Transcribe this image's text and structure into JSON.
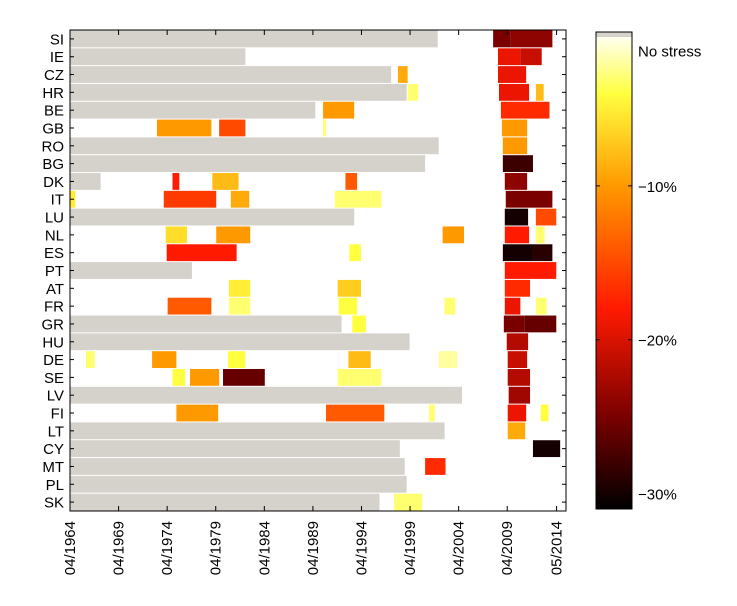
{
  "chart_data": {
    "type": "heatmap",
    "title": "",
    "xlabel": "",
    "ylabel": "",
    "x_range": [
      1964.25,
      2015.3
    ],
    "x_tick_labels": [
      {
        "label": "04/1964",
        "value": 1964.25
      },
      {
        "label": "04/1969",
        "value": 1969.25
      },
      {
        "label": "04/1974",
        "value": 1974.25
      },
      {
        "label": "04/1979",
        "value": 1979.25
      },
      {
        "label": "04/1984",
        "value": 1984.25
      },
      {
        "label": "04/1989",
        "value": 1989.25
      },
      {
        "label": "04/1994",
        "value": 1994.25
      },
      {
        "label": "04/1999",
        "value": 1999.25
      },
      {
        "label": "04/2004",
        "value": 2004.25
      },
      {
        "label": "04/2009",
        "value": 2009.25
      },
      {
        "label": "05/2014",
        "value": 2014.33
      }
    ],
    "countries": [
      "SI",
      "IE",
      "CZ",
      "HR",
      "BE",
      "GB",
      "RO",
      "BG",
      "DK",
      "IT",
      "LU",
      "NL",
      "ES",
      "PT",
      "AT",
      "FR",
      "GR",
      "HU",
      "DE",
      "SE",
      "LV",
      "FI",
      "LT",
      "CY",
      "MT",
      "PL",
      "SK"
    ],
    "no_data_color": "#d5d1cb",
    "no_data_periods": [
      {
        "country": "SI",
        "start": 1964.25,
        "end": 2002.1
      },
      {
        "country": "IE",
        "start": 1964.25,
        "end": 1982.3
      },
      {
        "country": "CZ",
        "start": 1964.25,
        "end": 1997.3
      },
      {
        "country": "HR",
        "start": 1964.25,
        "end": 1998.9
      },
      {
        "country": "BE",
        "start": 1964.25,
        "end": 1989.5
      },
      {
        "country": "RO",
        "start": 1964.25,
        "end": 2002.2
      },
      {
        "country": "BG",
        "start": 1964.25,
        "end": 2000.8
      },
      {
        "country": "DK",
        "start": 1964.25,
        "end": 1967.4
      },
      {
        "country": "LU",
        "start": 1964.25,
        "end": 1993.5
      },
      {
        "country": "PT",
        "start": 1964.25,
        "end": 1976.8
      },
      {
        "country": "GR",
        "start": 1964.25,
        "end": 1992.2
      },
      {
        "country": "HU",
        "start": 1964.25,
        "end": 1999.2
      },
      {
        "country": "LV",
        "start": 1964.25,
        "end": 2004.6
      },
      {
        "country": "LT",
        "start": 1964.25,
        "end": 2002.8
      },
      {
        "country": "CY",
        "start": 1964.25,
        "end": 1998.2
      },
      {
        "country": "MT",
        "start": 1964.25,
        "end": 1998.7
      },
      {
        "country": "PL",
        "start": 1964.25,
        "end": 1998.9
      },
      {
        "country": "SK",
        "start": 1964.25,
        "end": 1996.1
      }
    ],
    "stress_periods": [
      {
        "country": "SI",
        "start": 2007.8,
        "end": 2009.6,
        "value": -25
      },
      {
        "country": "SI",
        "start": 2009.6,
        "end": 2013.9,
        "value": -24
      },
      {
        "country": "IE",
        "start": 2008.3,
        "end": 2010.6,
        "value": -19
      },
      {
        "country": "IE",
        "start": 2010.6,
        "end": 2012.8,
        "value": -21
      },
      {
        "country": "CZ",
        "start": 1998.0,
        "end": 1999.0,
        "value": -9
      },
      {
        "country": "CZ",
        "start": 2008.3,
        "end": 2011.2,
        "value": -19
      },
      {
        "country": "HR",
        "start": 1999.0,
        "end": 2000.1,
        "value": -3
      },
      {
        "country": "HR",
        "start": 2008.4,
        "end": 2011.5,
        "value": -19
      },
      {
        "country": "HR",
        "start": 2012.2,
        "end": 2013.0,
        "value": -8
      },
      {
        "country": "BE",
        "start": 1990.3,
        "end": 1993.5,
        "value": -10
      },
      {
        "country": "BE",
        "start": 2008.6,
        "end": 2013.6,
        "value": -17
      },
      {
        "country": "GB",
        "start": 1973.2,
        "end": 1978.8,
        "value": -10
      },
      {
        "country": "GB",
        "start": 1979.6,
        "end": 1982.3,
        "value": -15
      },
      {
        "country": "GB",
        "start": 1990.3,
        "end": 1990.6,
        "value": -3
      },
      {
        "country": "GB",
        "start": 2008.7,
        "end": 2011.3,
        "value": -10
      },
      {
        "country": "RO",
        "start": 2008.8,
        "end": 2011.3,
        "value": -10
      },
      {
        "country": "BG",
        "start": 2008.8,
        "end": 2011.9,
        "value": -28
      },
      {
        "country": "DK",
        "start": 1974.8,
        "end": 1975.5,
        "value": -18
      },
      {
        "country": "DK",
        "start": 1978.9,
        "end": 1981.6,
        "value": -8
      },
      {
        "country": "DK",
        "start": 1992.6,
        "end": 1993.8,
        "value": -14
      },
      {
        "country": "DK",
        "start": 2009.0,
        "end": 2011.3,
        "value": -24
      },
      {
        "country": "IT",
        "start": 1964.25,
        "end": 1964.8,
        "value": -5
      },
      {
        "country": "IT",
        "start": 1973.9,
        "end": 1979.3,
        "value": -16
      },
      {
        "country": "IT",
        "start": 1980.8,
        "end": 1982.7,
        "value": -9
      },
      {
        "country": "IT",
        "start": 1991.5,
        "end": 1996.3,
        "value": -3
      },
      {
        "country": "IT",
        "start": 2009.1,
        "end": 2013.9,
        "value": -25
      },
      {
        "country": "LU",
        "start": 2009.0,
        "end": 2011.4,
        "value": -30
      },
      {
        "country": "LU",
        "start": 2012.2,
        "end": 2014.3,
        "value": -15
      },
      {
        "country": "NL",
        "start": 1974.1,
        "end": 1976.3,
        "value": -6
      },
      {
        "country": "NL",
        "start": 1979.3,
        "end": 1982.8,
        "value": -10
      },
      {
        "country": "NL",
        "start": 2002.6,
        "end": 2004.8,
        "value": -10
      },
      {
        "country": "NL",
        "start": 2009.0,
        "end": 2011.5,
        "value": -18
      },
      {
        "country": "NL",
        "start": 2012.2,
        "end": 2013.1,
        "value": -3
      },
      {
        "country": "ES",
        "start": 1974.2,
        "end": 1981.4,
        "value": -18
      },
      {
        "country": "ES",
        "start": 1993.0,
        "end": 1994.2,
        "value": -4
      },
      {
        "country": "ES",
        "start": 2008.8,
        "end": 2011.9,
        "value": -30
      },
      {
        "country": "ES",
        "start": 2011.9,
        "end": 2013.9,
        "value": -29
      },
      {
        "country": "PT",
        "start": 2009.0,
        "end": 2014.3,
        "value": -18
      },
      {
        "country": "AT",
        "start": 1980.6,
        "end": 1982.8,
        "value": -5
      },
      {
        "country": "AT",
        "start": 1991.8,
        "end": 1994.2,
        "value": -7
      },
      {
        "country": "AT",
        "start": 2009.0,
        "end": 2011.6,
        "value": -17
      },
      {
        "country": "FR",
        "start": 1974.3,
        "end": 1978.8,
        "value": -14
      },
      {
        "country": "FR",
        "start": 1980.6,
        "end": 1982.8,
        "value": -3
      },
      {
        "country": "FR",
        "start": 1991.9,
        "end": 1993.8,
        "value": -4
      },
      {
        "country": "FR",
        "start": 2002.8,
        "end": 2003.9,
        "value": -3
      },
      {
        "country": "FR",
        "start": 2009.0,
        "end": 2010.6,
        "value": -19
      },
      {
        "country": "FR",
        "start": 2012.2,
        "end": 2013.3,
        "value": -3
      },
      {
        "country": "GR",
        "start": 1993.3,
        "end": 1994.7,
        "value": -4
      },
      {
        "country": "GR",
        "start": 2008.9,
        "end": 2011.0,
        "value": -25
      },
      {
        "country": "GR",
        "start": 2011.0,
        "end": 2014.3,
        "value": -26
      },
      {
        "country": "HU",
        "start": 2009.2,
        "end": 2011.4,
        "value": -22
      },
      {
        "country": "DE",
        "start": 1965.9,
        "end": 1966.8,
        "value": -3
      },
      {
        "country": "DE",
        "start": 1972.7,
        "end": 1975.2,
        "value": -10
      },
      {
        "country": "DE",
        "start": 1980.5,
        "end": 1982.3,
        "value": -4
      },
      {
        "country": "DE",
        "start": 1992.9,
        "end": 1995.2,
        "value": -8
      },
      {
        "country": "DE",
        "start": 2002.2,
        "end": 2004.1,
        "value": -2
      },
      {
        "country": "DE",
        "start": 2009.3,
        "end": 2011.3,
        "value": -21
      },
      {
        "country": "SE",
        "start": 1974.8,
        "end": 1976.1,
        "value": -4
      },
      {
        "country": "SE",
        "start": 1976.6,
        "end": 1979.6,
        "value": -10
      },
      {
        "country": "SE",
        "start": 1980.0,
        "end": 1984.3,
        "value": -26
      },
      {
        "country": "SE",
        "start": 1991.8,
        "end": 1996.3,
        "value": -3
      },
      {
        "country": "SE",
        "start": 2009.3,
        "end": 2011.6,
        "value": -22
      },
      {
        "country": "LV",
        "start": 2009.4,
        "end": 2011.6,
        "value": -23
      },
      {
        "country": "FI",
        "start": 1975.2,
        "end": 1979.5,
        "value": -10
      },
      {
        "country": "FI",
        "start": 1990.6,
        "end": 1996.6,
        "value": -14
      },
      {
        "country": "FI",
        "start": 2001.2,
        "end": 2001.8,
        "value": -3
      },
      {
        "country": "FI",
        "start": 2009.3,
        "end": 2011.2,
        "value": -19
      },
      {
        "country": "FI",
        "start": 2012.7,
        "end": 2013.5,
        "value": -4
      },
      {
        "country": "LT",
        "start": 2009.3,
        "end": 2011.1,
        "value": -9
      },
      {
        "country": "CY",
        "start": 2011.9,
        "end": 2014.7,
        "value": -30
      },
      {
        "country": "MT",
        "start": 2000.8,
        "end": 2002.9,
        "value": -17
      },
      {
        "country": "SK",
        "start": 1997.6,
        "end": 2000.5,
        "value": -3
      }
    ],
    "colorbar": {
      "range": [
        -31,
        0
      ],
      "tick_labels": [
        {
          "label": "No stress",
          "value": -0.3
        },
        {
          "label": "−10%",
          "value": -10
        },
        {
          "label": "−20%",
          "value": -20
        },
        {
          "label": "−30%",
          "value": -30
        }
      ],
      "color_stops": [
        {
          "value": 0,
          "color": "#ffffff"
        },
        {
          "value": -4,
          "color": "#ffff40"
        },
        {
          "value": -10,
          "color": "#ff9900"
        },
        {
          "value": -18,
          "color": "#ff1a00"
        },
        {
          "value": -25,
          "color": "#7a0000"
        },
        {
          "value": -31,
          "color": "#000000"
        }
      ]
    }
  }
}
